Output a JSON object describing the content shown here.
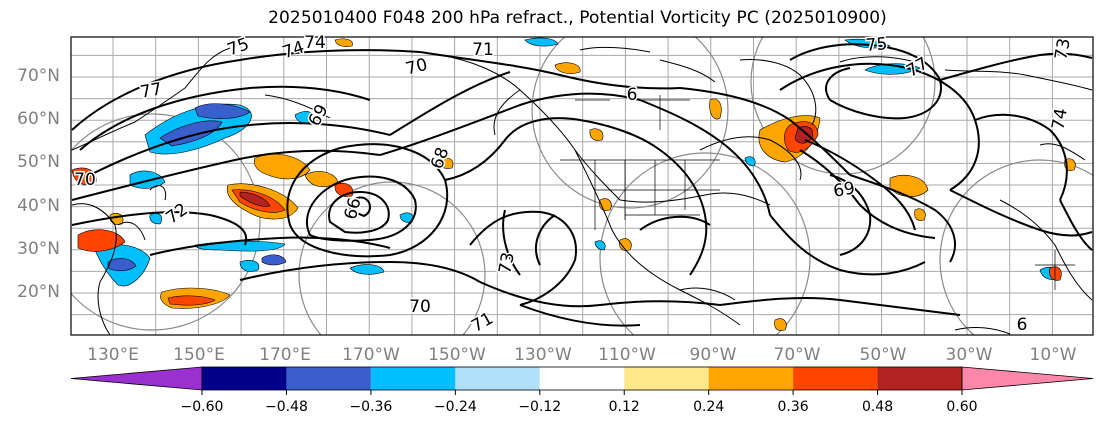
{
  "title": "2025010400 F048 200 hPa refract., Potential Vorticity PC (2025010900)",
  "lat_labels": [
    "70°N",
    "60°N",
    "50°N",
    "40°N",
    "30°N",
    "20°N"
  ],
  "lat_values": [
    70,
    60,
    50,
    40,
    30,
    20
  ],
  "lon_labels": [
    "130°E",
    "150°E",
    "170°E",
    "170°W",
    "150°W",
    "130°W",
    "110°W",
    "90°W",
    "70°W",
    "50°W",
    "30°W",
    "10°W"
  ],
  "lon_values": [
    130,
    150,
    170,
    190,
    210,
    230,
    250,
    270,
    290,
    310,
    330,
    350
  ],
  "contour_labels": [
    "75",
    "74",
    "71",
    "70",
    "77",
    "69",
    "68",
    "72",
    "73",
    "66",
    "75",
    "77",
    "74",
    "70",
    "69",
    "73",
    "71",
    "70",
    "74",
    "6",
    "6"
  ],
  "colorbar": {
    "ticks": [
      "−0.60",
      "−0.48",
      "−0.36",
      "−0.24",
      "−0.12",
      "0.12",
      "0.24",
      "0.36",
      "0.48",
      "0.60"
    ],
    "colors": [
      "#9b30d0",
      "#00008b",
      "#3a5fcd",
      "#00bfff",
      "#b0e0fa",
      "#ffffff",
      "#ffe88a",
      "#ffa500",
      "#ff4500",
      "#b22222",
      "#ff88aa"
    ]
  },
  "fill_colors": {
    "neg_light": "#b0e0fa",
    "neg_mid": "#00bfff",
    "neg_strong": "#3a5fcd",
    "pos_light": "#ffe88a",
    "pos_mid": "#ffa500",
    "pos_strong": "#ff4500",
    "pos_extreme": "#b22222"
  }
}
